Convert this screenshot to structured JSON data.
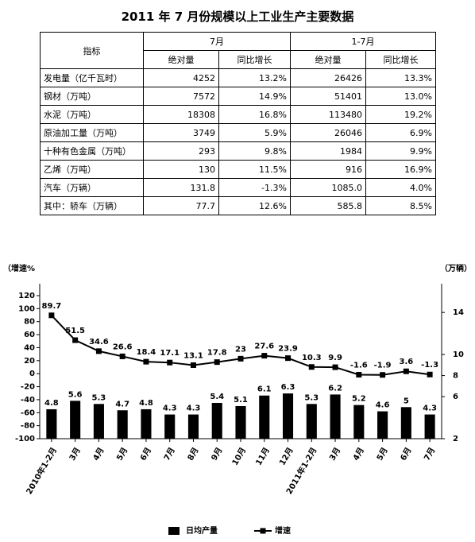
{
  "table": {
    "title": "2011 年 7 月份规模以上工业生产主要数据",
    "header_row1": [
      "指标",
      "7月",
      "1-7月"
    ],
    "header_row2": [
      "绝对量",
      "同比增长",
      "绝对量",
      "同比增长"
    ],
    "rows": [
      [
        "发电量（亿千瓦时）",
        "4252",
        "13.2%",
        "26426",
        "13.3%"
      ],
      [
        "钢材（万吨）",
        "7572",
        "14.9%",
        "51401",
        "13.0%"
      ],
      [
        "水泥（万吨）",
        "18308",
        "16.8%",
        "113480",
        "19.2%"
      ],
      [
        "原油加工量（万吨）",
        "3749",
        "5.9%",
        "26046",
        "6.9%"
      ],
      [
        "十种有色金属（万吨）",
        "293",
        "9.8%",
        "1984",
        "9.9%"
      ],
      [
        "乙烯（万吨）",
        "130",
        "11.5%",
        "916",
        "16.9%"
      ],
      [
        "汽车（万辆）",
        "131.8",
        "-1.3%",
        "1085.0",
        "4.0%"
      ],
      [
        "其中：轿车（万辆）",
        "77.7",
        "12.6%",
        "585.8",
        "8.5%"
      ]
    ]
  },
  "chart_data": {
    "type": "bar-line",
    "y_label": "（增速%",
    "y2_label": "（万辆）",
    "categories": [
      "2010年1-2月",
      "3月",
      "4月",
      "5月",
      "6月",
      "7月",
      "8月",
      "9月",
      "10月",
      "11月",
      "12月",
      "2011年1-2月",
      "3月",
      "4月",
      "5月",
      "6月",
      "7月"
    ],
    "series": [
      {
        "name": "日均产量",
        "type": "bar",
        "color": "#000000",
        "axis": "y2",
        "values": [
          4.8,
          5.6,
          5.3,
          4.7,
          4.8,
          4.3,
          4.3,
          5.4,
          5.1,
          6.1,
          6.3,
          5.3,
          6.2,
          5.2,
          4.6,
          5,
          4.3
        ]
      },
      {
        "name": "增速",
        "type": "line",
        "color": "#000000",
        "values": [
          89.7,
          51.5,
          34.6,
          26.6,
          18.4,
          17.1,
          13.1,
          17.8,
          23,
          27.6,
          23.9,
          10.3,
          9.9,
          -1.6,
          -1.9,
          3.6,
          -1.3
        ]
      }
    ],
    "ylim": [
      -100,
      120
    ],
    "yticks": [
      -100,
      -80,
      -60,
      -40,
      -20,
      0,
      20,
      40,
      60,
      80,
      100,
      120
    ],
    "y2lim": [
      2,
      15.6
    ],
    "y2ticks": [
      2,
      6,
      8,
      10,
      14
    ],
    "legend": "bottom"
  }
}
